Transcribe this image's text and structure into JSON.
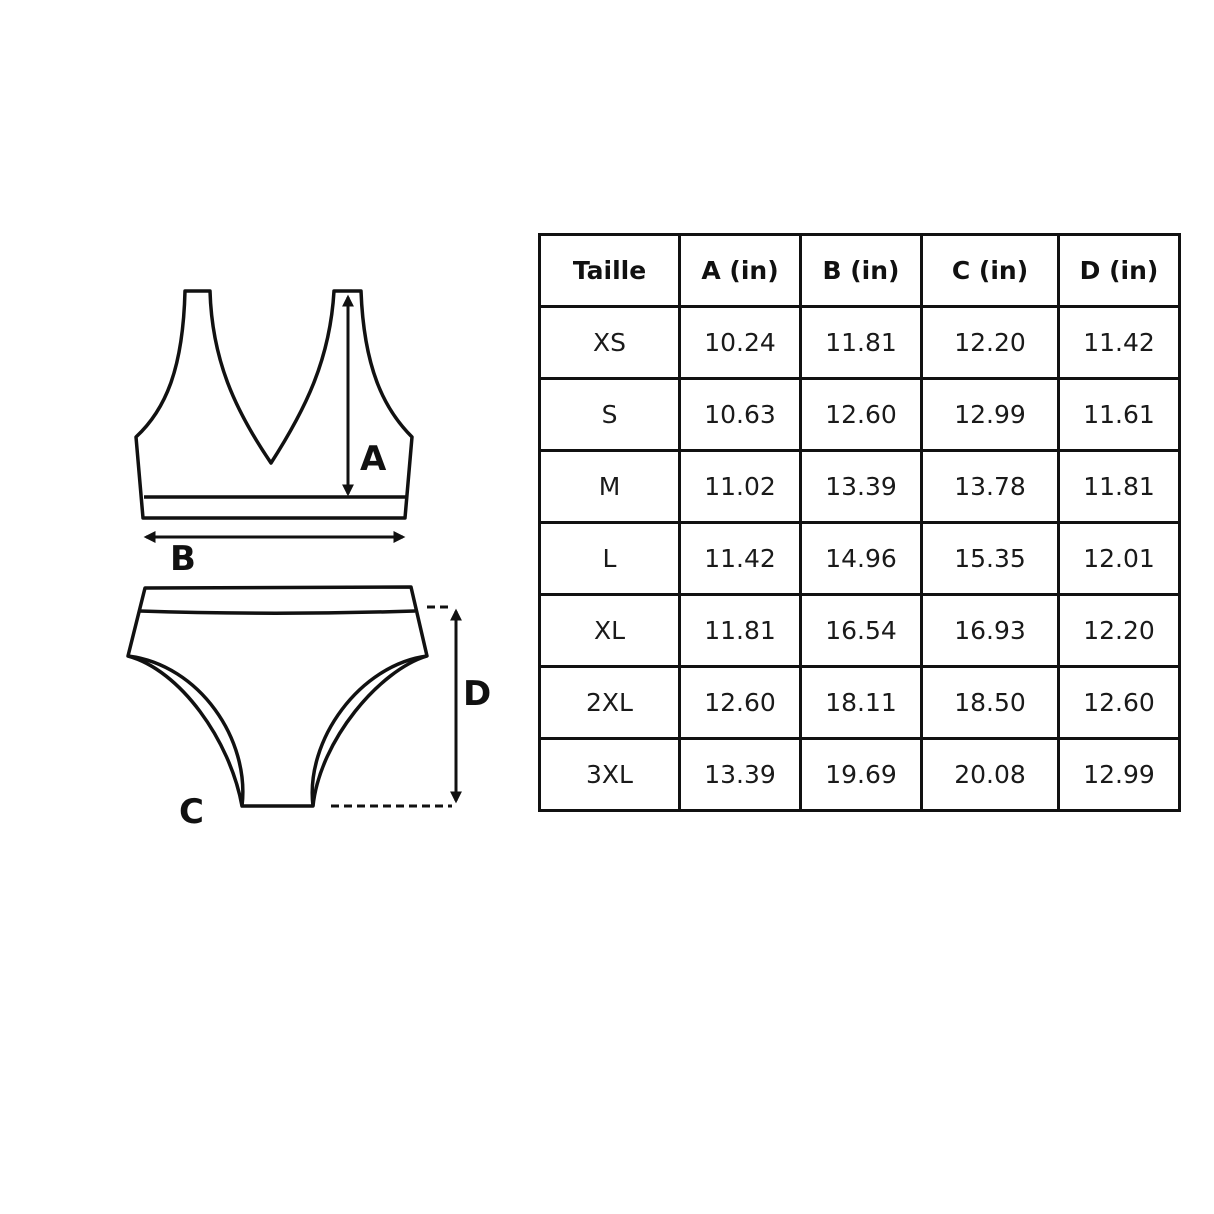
{
  "diagram": {
    "labels": {
      "a": "A",
      "b": "B",
      "c": "C",
      "d": "D"
    },
    "line_color": "#111111"
  },
  "table": {
    "headers": [
      "Taille",
      "A (in)",
      "B (in)",
      "C (in)",
      "D (in)"
    ],
    "rows": [
      [
        "XS",
        "10.24",
        "11.81",
        "12.20",
        "11.42"
      ],
      [
        "S",
        "10.63",
        "12.60",
        "12.99",
        "11.61"
      ],
      [
        "M",
        "11.02",
        "13.39",
        "13.78",
        "11.81"
      ],
      [
        "L",
        "11.42",
        "14.96",
        "15.35",
        "12.01"
      ],
      [
        "XL",
        "11.81",
        "16.54",
        "16.93",
        "12.20"
      ],
      [
        "2XL",
        "12.60",
        "18.11",
        "18.50",
        "12.60"
      ],
      [
        "3XL",
        "13.39",
        "19.69",
        "20.08",
        "12.99"
      ]
    ]
  }
}
